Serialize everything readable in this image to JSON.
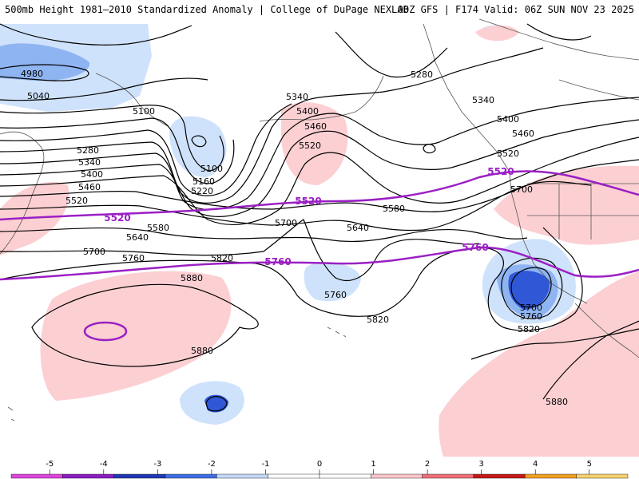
{
  "header": {
    "title_left": "500mb Height 1981–2010 Standardized Anomaly | College of DuPage NEXLAB",
    "title_right": "00Z GFS | F174 Valid: 06Z SUN NOV 23 2025"
  },
  "colors": {
    "neg_strong": "#2f57d6",
    "neg_mid": "#8fb4f2",
    "neg_light": "#cfe2fb",
    "pos_light": "#fcd0d3",
    "contour": "#000000",
    "highlight": "#9b1fc4",
    "coast": "#555555"
  },
  "contour_labels": [
    {
      "id": "4980",
      "text": "4980"
    },
    {
      "id": "5040",
      "text": "5040"
    },
    {
      "id": "5100a",
      "text": "5100"
    },
    {
      "id": "5100b",
      "text": "5100"
    },
    {
      "id": "5160",
      "text": "5160"
    },
    {
      "id": "5220",
      "text": "5220"
    },
    {
      "id": "5280a",
      "text": "5280"
    },
    {
      "id": "5280b",
      "text": "5280"
    },
    {
      "id": "5340a",
      "text": "5340"
    },
    {
      "id": "5340b",
      "text": "5340"
    },
    {
      "id": "5340c",
      "text": "5340"
    },
    {
      "id": "5400a",
      "text": "5400"
    },
    {
      "id": "5400b",
      "text": "5400"
    },
    {
      "id": "5400c",
      "text": "5400"
    },
    {
      "id": "5460a",
      "text": "5460"
    },
    {
      "id": "5460b",
      "text": "5460"
    },
    {
      "id": "5460c",
      "text": "5460"
    },
    {
      "id": "5520a",
      "text": "5520"
    },
    {
      "id": "5520b",
      "text": "5520"
    },
    {
      "id": "5520c",
      "text": "5520"
    },
    {
      "id": "5580a",
      "text": "5580"
    },
    {
      "id": "5580b",
      "text": "5580"
    },
    {
      "id": "5640a",
      "text": "5640"
    },
    {
      "id": "5640b",
      "text": "5640"
    },
    {
      "id": "5700a",
      "text": "5700"
    },
    {
      "id": "5700b",
      "text": "5700"
    },
    {
      "id": "5700c",
      "text": "5700"
    },
    {
      "id": "5700d",
      "text": "5700"
    },
    {
      "id": "5760a",
      "text": "5760"
    },
    {
      "id": "5760b",
      "text": "5760"
    },
    {
      "id": "5760c",
      "text": "5760"
    },
    {
      "id": "5820a",
      "text": "5820"
    },
    {
      "id": "5820b",
      "text": "5820"
    },
    {
      "id": "5820c",
      "text": "5820"
    },
    {
      "id": "5880a",
      "text": "5880"
    },
    {
      "id": "5880b",
      "text": "5880"
    },
    {
      "id": "5880c",
      "text": "5880"
    }
  ],
  "highlight_labels": [
    {
      "id": "h5520a",
      "text": "5520"
    },
    {
      "id": "h5520b",
      "text": "5520"
    },
    {
      "id": "h5520c",
      "text": "5520"
    },
    {
      "id": "h5760a",
      "text": "5760"
    },
    {
      "id": "h5760b",
      "text": "5760"
    }
  ],
  "colorbar": {
    "ticks": [
      "-5",
      "-4",
      "-3",
      "-2",
      "-1",
      "0",
      "1",
      "2",
      "3",
      "4",
      "5"
    ],
    "bins": [
      "#dd44dd",
      "#8a1fc0",
      "#2238b5",
      "#3e6ee3",
      "#c3d8f7",
      "#ffffff",
      "#ffffff",
      "#fbc5cb",
      "#ef6e75",
      "#c41a1a",
      "#f0a020",
      "#f7d070"
    ]
  }
}
